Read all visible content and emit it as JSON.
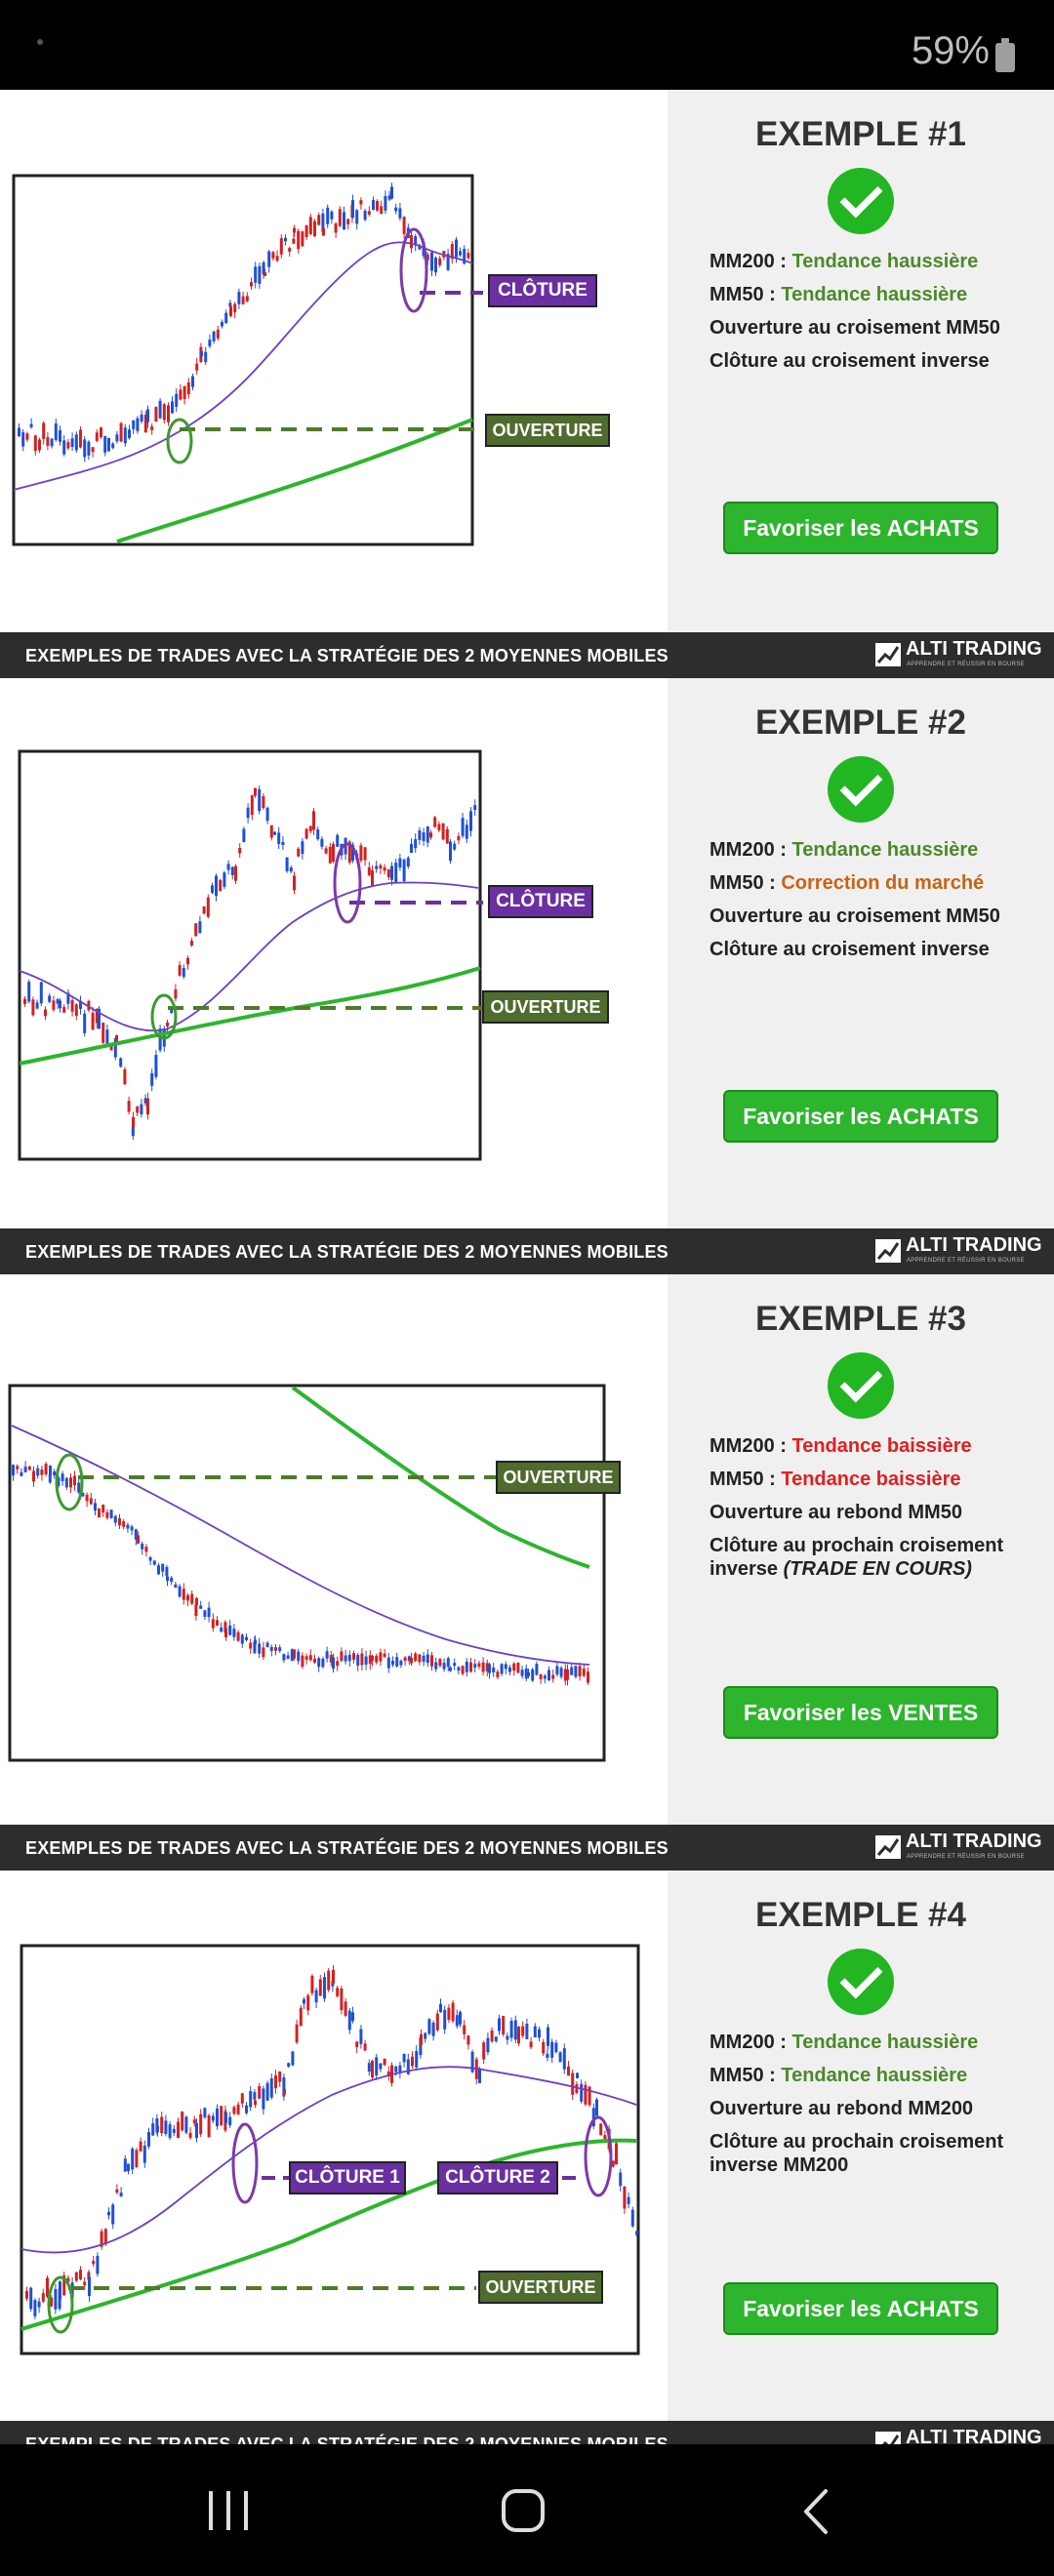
{
  "status_bar": {
    "battery": "59%"
  },
  "banner": {
    "title": "EXEMPLES DE TRADES AVEC LA STRATÉGIE DES 2 MOYENNES MOBILES",
    "brand": "ALTI TRADING",
    "brand_tagline": "APPRENDRE ET RÉUSSIR EN BOURSE"
  },
  "examples": [
    {
      "title": "EXEMPLE #1",
      "mm200_label": "MM200 :",
      "mm200_value": "Tendance haussière",
      "mm50_label": "MM50 :",
      "mm50_value": "Tendance haussière",
      "line3": "Ouverture au croisement MM50",
      "line4": "Clôture au croisement inverse",
      "button": "Favoriser les ACHATS",
      "chart_labels": {
        "close": "CLÔTURE",
        "open": "OUVERTURE"
      }
    },
    {
      "title": "EXEMPLE #2",
      "mm200_label": "MM200 :",
      "mm200_value": "Tendance haussière",
      "mm50_label": "MM50 :",
      "mm50_value": "Correction du marché",
      "line3": "Ouverture au croisement MM50",
      "line4": "Clôture au croisement inverse",
      "button": "Favoriser les ACHATS",
      "chart_labels": {
        "close": "CLÔTURE",
        "open": "OUVERTURE"
      }
    },
    {
      "title": "EXEMPLE #3",
      "mm200_label": "MM200 :",
      "mm200_value": "Tendance baissière",
      "mm50_label": "MM50 :",
      "mm50_value": "Tendance baissière",
      "line3": "Ouverture au rebond MM50",
      "line4": "Clôture au prochain croisement inverse",
      "line4_suffix": "(TRADE EN COURS)",
      "button": "Favoriser les VENTES",
      "chart_labels": {
        "open": "OUVERTURE"
      }
    },
    {
      "title": "EXEMPLE #4",
      "mm200_label": "MM200 :",
      "mm200_value": "Tendance haussière",
      "mm50_label": "MM50 :",
      "mm50_value": "Tendance haussière",
      "line3": "Ouverture au rebond MM200",
      "line4": "Clôture au prochain croisement inverse MM200",
      "button": "Favoriser les ACHATS",
      "chart_labels": {
        "close1": "CLÔTURE 1",
        "close2": "CLÔTURE 2",
        "open": "OUVERTURE"
      }
    }
  ],
  "colors": {
    "accent_green": "#2db52d",
    "uptrend_text": "#4b8a2a",
    "downtrend_text": "#e02020",
    "correction_text": "#c86414",
    "close_label": "#6a2fa0",
    "open_label": "#4f6b2e",
    "banner_bg": "#2d2d2d",
    "panel_bg": "#f0f0f0"
  },
  "icons": {
    "check": "check-circle-icon",
    "brand": "alti-trading-logo-icon",
    "nav_recents": "recent-apps-icon",
    "nav_home": "home-icon",
    "nav_back": "back-icon"
  }
}
